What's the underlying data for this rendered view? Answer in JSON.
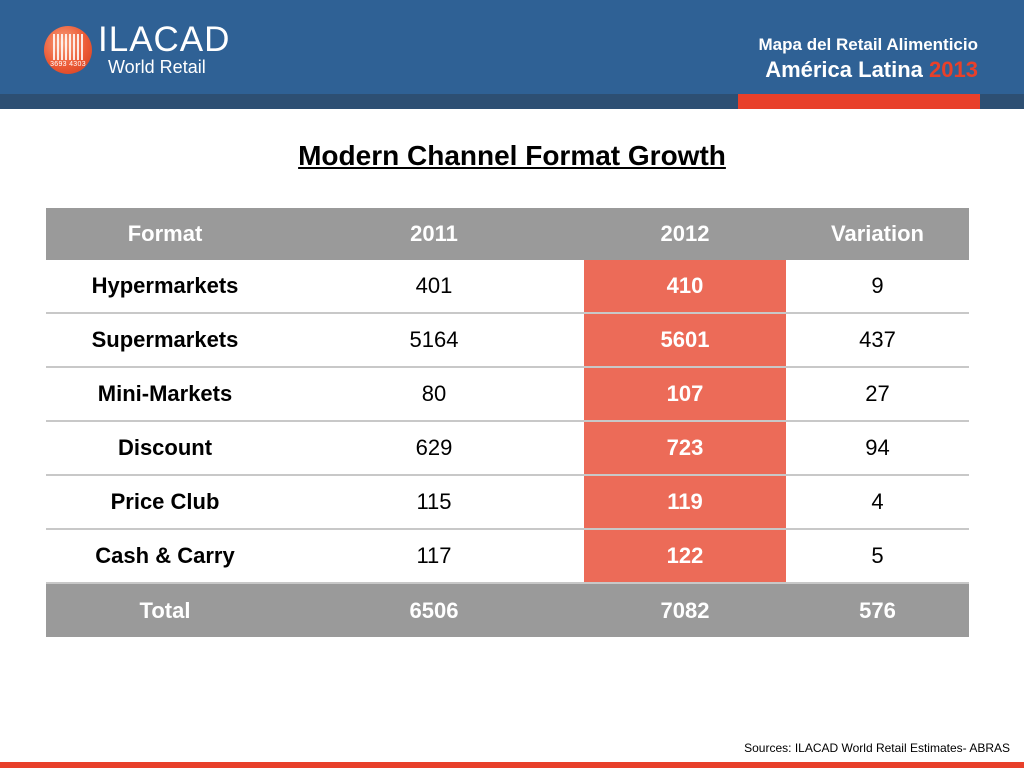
{
  "header": {
    "logo": {
      "word": "ILACAD",
      "sub": "World Retail",
      "badge_numbers": "3693 4303"
    },
    "subtitle_line1": "Mapa del Retail Alimenticio",
    "subtitle_line2": "América Latina",
    "year": "2013"
  },
  "title": "Modern Channel Format Growth",
  "table": {
    "columns": [
      "Format",
      "2011",
      "2012",
      "Variation"
    ],
    "rows": [
      {
        "format": "Hypermarkets",
        "y2011": "401",
        "y2012": "410",
        "variation": "9"
      },
      {
        "format": "Supermarkets",
        "y2011": "5164",
        "y2012": "5601",
        "variation": "437"
      },
      {
        "format": "Mini-Markets",
        "y2011": "80",
        "y2012": "107",
        "variation": "27"
      },
      {
        "format": "Discount",
        "y2011": "629",
        "y2012": "723",
        "variation": "94"
      },
      {
        "format": "Price Club",
        "y2011": "115",
        "y2012": "119",
        "variation": "4"
      },
      {
        "format": "Cash & Carry",
        "y2011": "117",
        "y2012": "122",
        "variation": "5"
      }
    ],
    "total": {
      "label": "Total",
      "y2011": "6506",
      "y2012": "7082",
      "variation": "576"
    }
  },
  "source": "Sources: ILACAD World Retail  Estimates- ABRAS",
  "colors": {
    "header_blue": "#2f6195",
    "accent_red": "#e8402a",
    "table_header_gray": "#9a9a9a",
    "highlight_coral": "#ec6b58"
  }
}
